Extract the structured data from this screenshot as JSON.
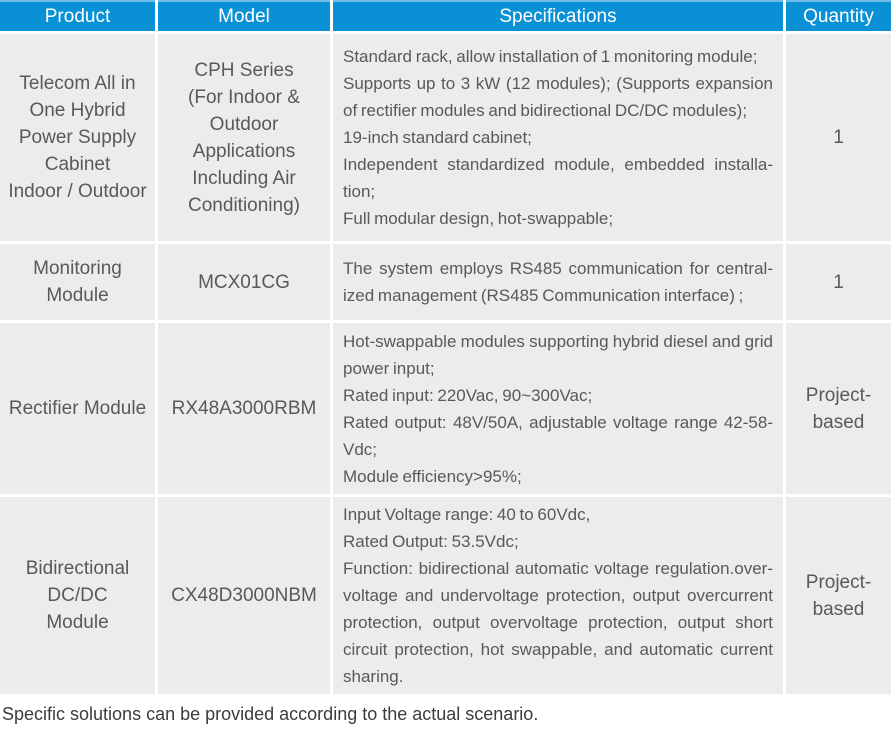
{
  "colors": {
    "accent": "#0a90d5",
    "accent-light": "#6fbce6",
    "row-bg": "#ececea",
    "cell-text": "#595959",
    "header-text": "#ffffff",
    "footer-text": "#3c3c3c"
  },
  "table": {
    "header": {
      "columns": [
        "Product",
        "Model",
        "Specifications",
        "Quantity"
      ]
    },
    "rows": [
      {
        "product": [
          "Telecom All in One Hybrid Power Supply Cabinet",
          "Indoor / Outdoor"
        ],
        "model": [
          "CPH Series",
          "(For Indoor & Outdoor Applications Including Air Conditioning)"
        ],
        "specifications": [
          "Standard rack, allow installation of 1 monitoring module;",
          "Supports up to 3 kW (12 modules); (Supports expansion of rectifier modules and bidirectional DC/DC modules);",
          "19-inch standard cabinet;",
          "Independent standardized module, embedded installa­tion;",
          "Full modular design, hot-swappable;"
        ],
        "quantity": "1"
      },
      {
        "product": [
          "Monitoring Module"
        ],
        "model": [
          "MCX01CG"
        ],
        "specifications": [
          "The system employs RS485 communication for central­ized management (RS485 Communication interface) ;"
        ],
        "quantity": "1"
      },
      {
        "product": [
          "Rectifier Module"
        ],
        "model": [
          "RX48A3000RBM"
        ],
        "specifications": [
          "Hot-swappable modules supporting hybrid diesel and grid power input;",
          "Rated input: 220Vac, 90~300Vac;",
          "Rated output: 48V/50A, adjustable voltage range 42-58-Vdc;",
          "Module efficiency>95%;"
        ],
        "quantity": "Project-based"
      },
      {
        "product": [
          "Bidirectional",
          "DC/DC",
          "Module"
        ],
        "model": [
          "CX48D3000NBM"
        ],
        "specifications": [
          "Input Voltage range: 40 to 60Vdc,",
          "Rated Output: 53.5Vdc;",
          "Function: bidirectional automatic voltage regulation.over­voltage and undervoltage protection, output overcurrent protection, output overvoltage protection, output short circuit protection, hot swappable, and automatic current sharing."
        ],
        "quantity": "Project-based"
      }
    ]
  },
  "footer": {
    "note": "Specific solutions can be provided according to the actual scenario."
  }
}
